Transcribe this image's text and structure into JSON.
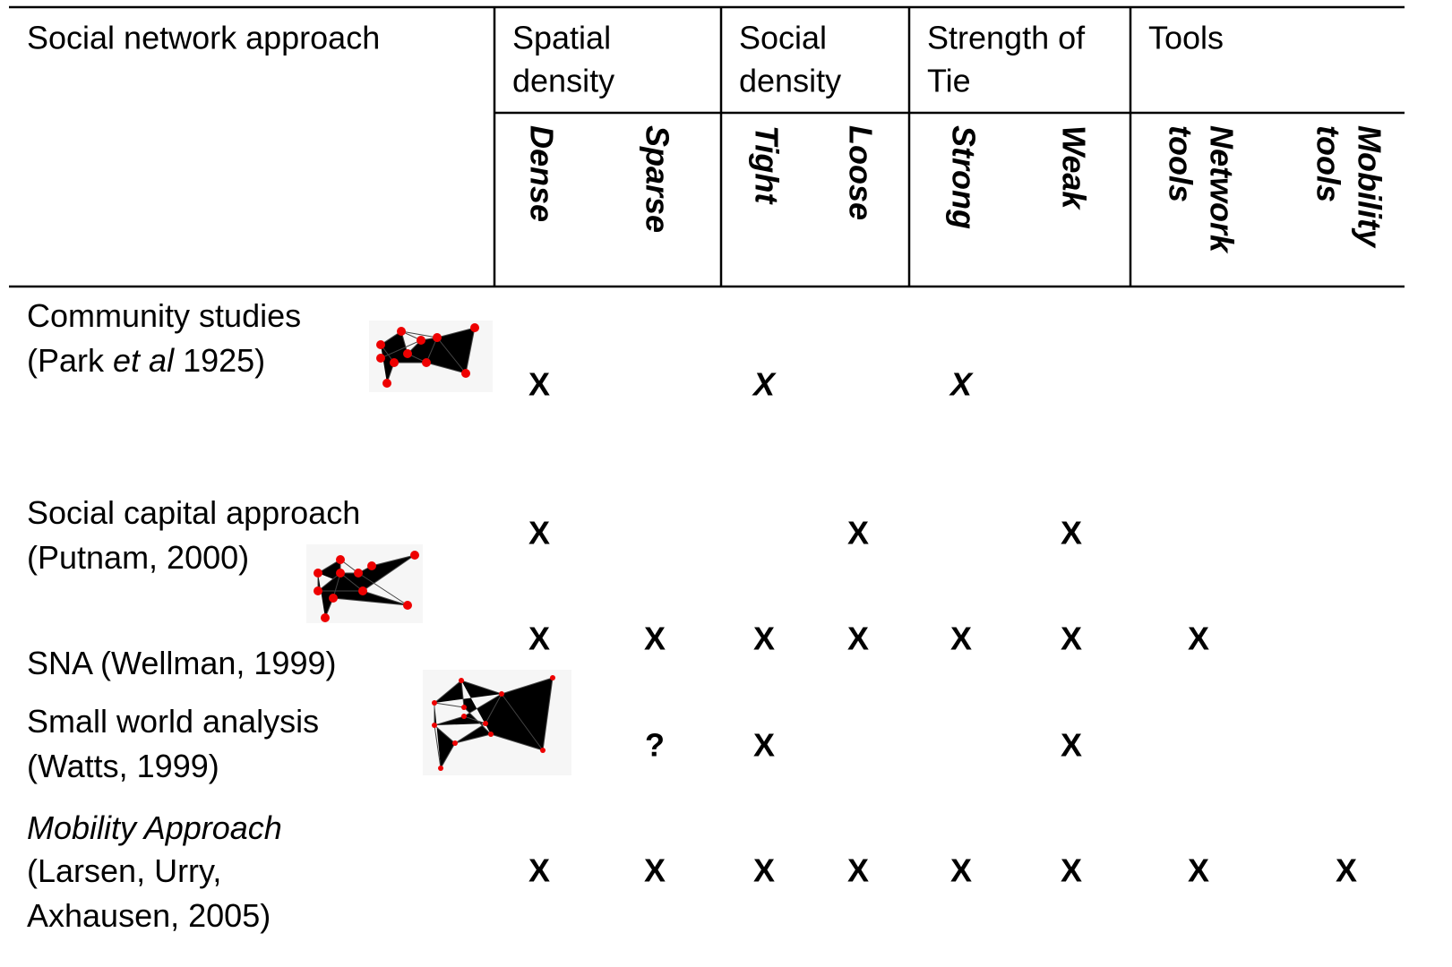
{
  "header": {
    "title": "Social network approach",
    "groups": [
      {
        "label": [
          "Spatial",
          "density"
        ],
        "columns": [
          [
            "Dense"
          ],
          [
            "Sparse"
          ]
        ]
      },
      {
        "label": [
          "Social",
          "density"
        ],
        "columns": [
          [
            "Tight"
          ],
          [
            "Loose"
          ]
        ]
      },
      {
        "label": [
          "Strength of",
          "Tie"
        ],
        "columns": [
          [
            "Strong"
          ],
          [
            "Weak"
          ]
        ]
      },
      {
        "label": [
          "Tools"
        ],
        "columns": [
          [
            "Network",
            "tools"
          ],
          [
            "Mobility",
            "tools"
          ]
        ]
      }
    ]
  },
  "rows": [
    {
      "lines": [
        [
          "Community studies"
        ],
        [
          "(Park ",
          {
            "text": "et al",
            "italic": true
          },
          " 1925)"
        ]
      ],
      "marks": [
        "X",
        null,
        {
          "text": "X",
          "italic": true
        },
        null,
        {
          "text": "X",
          "italic": true
        },
        null,
        null,
        null
      ]
    },
    {
      "lines": [
        [
          "Social capital approach"
        ],
        [
          "(Putnam, 2000)"
        ]
      ],
      "marks": [
        "X",
        null,
        null,
        "X",
        null,
        "X",
        null,
        null
      ]
    },
    {
      "lines": [
        [
          "SNA (Wellman, 1999)"
        ]
      ],
      "marks": [
        "X",
        "X",
        "X",
        "X",
        "X",
        "X",
        "X",
        null
      ]
    },
    {
      "lines": [
        [
          "Small world analysis"
        ],
        [
          "(Watts, 1999)"
        ]
      ],
      "marks": [
        null,
        "?",
        "X",
        null,
        null,
        "X",
        null,
        null
      ]
    },
    {
      "lines": [
        [
          {
            "text": "Mobility Approach",
            "italic": true
          }
        ],
        [
          "(Larsen, Urry,"
        ],
        [
          "Axhausen, 2005)"
        ]
      ],
      "marks": [
        "X",
        "X",
        "X",
        "X",
        "X",
        "X",
        "X",
        "X"
      ]
    }
  ]
}
